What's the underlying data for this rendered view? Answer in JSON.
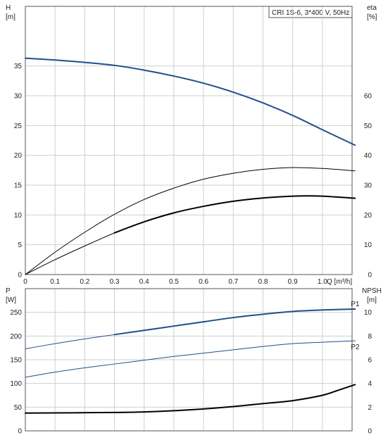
{
  "title_box": "CRI 1S-6, 3*400 V, 50Hz",
  "colors": {
    "blue": "#1f4e8c",
    "black": "#000000",
    "grid": "#cfcfcf"
  },
  "chart_data": [
    {
      "type": "line",
      "x_label": "Q [m³/h]",
      "x_ticks": [
        "0",
        "0.1",
        "0.2",
        "0.3",
        "0.4",
        "0.5",
        "0.6",
        "0.7",
        "0.8",
        "0.9",
        "1.0"
      ],
      "xlim": [
        0,
        1.1
      ],
      "y_left_label": [
        "H",
        "[m]"
      ],
      "y_left_ticks": [
        "0",
        "5",
        "10",
        "15",
        "20",
        "25",
        "30",
        "35"
      ],
      "y_left_lim": [
        0,
        45
      ],
      "y_right_label": [
        "eta",
        "[%]"
      ],
      "y_right_ticks": [
        "0",
        "10",
        "20",
        "30",
        "40",
        "50",
        "60"
      ],
      "y_right_lim": [
        0,
        90
      ],
      "grid": true,
      "series": [
        {
          "axis": "left",
          "color": "blue",
          "width": 2,
          "points": [
            [
              0,
              36.3
            ],
            [
              0.1,
              36.0
            ],
            [
              0.2,
              35.6
            ],
            [
              0.3,
              35.1
            ],
            [
              0.4,
              34.3
            ],
            [
              0.5,
              33.3
            ],
            [
              0.6,
              32.1
            ],
            [
              0.7,
              30.6
            ],
            [
              0.8,
              28.8
            ],
            [
              0.9,
              26.7
            ],
            [
              1.0,
              24.3
            ],
            [
              1.11,
              21.7
            ]
          ]
        },
        {
          "axis": "right",
          "color": "black",
          "width": 1,
          "points": [
            [
              0,
              0
            ],
            [
              0.1,
              7.5
            ],
            [
              0.2,
              14.2
            ],
            [
              0.3,
              20.2
            ],
            [
              0.4,
              25.2
            ],
            [
              0.5,
              29.0
            ],
            [
              0.6,
              32.0
            ],
            [
              0.7,
              34.0
            ],
            [
              0.8,
              35.3
            ],
            [
              0.9,
              35.9
            ],
            [
              1.0,
              35.6
            ],
            [
              1.11,
              34.8
            ]
          ]
        },
        {
          "axis": "right",
          "color": "black",
          "width": 1,
          "points": [
            [
              0,
              0
            ],
            [
              0.1,
              5.0
            ],
            [
              0.2,
              9.6
            ],
            [
              0.3,
              14.0
            ]
          ]
        },
        {
          "axis": "right",
          "color": "black",
          "width": 2,
          "points": [
            [
              0.3,
              14.0
            ],
            [
              0.4,
              17.7
            ],
            [
              0.5,
              20.7
            ],
            [
              0.6,
              22.9
            ],
            [
              0.7,
              24.6
            ],
            [
              0.8,
              25.7
            ],
            [
              0.9,
              26.3
            ],
            [
              0.95,
              26.4
            ],
            [
              1.0,
              26.3
            ],
            [
              1.11,
              25.6
            ]
          ]
        }
      ]
    },
    {
      "type": "line",
      "x_ticks": [],
      "xlim": [
        0,
        1.1
      ],
      "y_left_label": [
        "P",
        "[W]"
      ],
      "y_left_ticks": [
        "0",
        "50",
        "100",
        "150",
        "200",
        "250"
      ],
      "y_left_lim": [
        0,
        300
      ],
      "y_right_label": [
        "NPSH",
        "[m]"
      ],
      "y_right_ticks": [
        "0",
        "2",
        "4",
        "6",
        "8",
        "10"
      ],
      "y_right_lim": [
        0,
        12
      ],
      "grid": true,
      "series": [
        {
          "name": "P1",
          "axis": "left",
          "color": "blue",
          "width": 1,
          "points": [
            [
              0,
              173
            ],
            [
              0.1,
              184
            ],
            [
              0.2,
              194
            ],
            [
              0.3,
              203
            ]
          ]
        },
        {
          "name": "P1",
          "axis": "left",
          "color": "blue",
          "width": 2,
          "label_at_end": true,
          "points": [
            [
              0.3,
              203
            ],
            [
              0.4,
              212
            ],
            [
              0.5,
              221
            ],
            [
              0.6,
              230
            ],
            [
              0.7,
              239
            ],
            [
              0.8,
              246
            ],
            [
              0.9,
              252
            ],
            [
              1.0,
              255
            ],
            [
              1.11,
              257
            ]
          ]
        },
        {
          "name": "P2",
          "axis": "left",
          "color": "blue",
          "width": 1,
          "label_at_end": true,
          "points": [
            [
              0,
              113
            ],
            [
              0.1,
              124
            ],
            [
              0.2,
              133
            ],
            [
              0.3,
              141
            ],
            [
              0.4,
              149
            ],
            [
              0.5,
              157
            ],
            [
              0.6,
              164
            ],
            [
              0.7,
              171
            ],
            [
              0.8,
              178
            ],
            [
              0.9,
              184
            ],
            [
              1.0,
              187
            ],
            [
              1.11,
              190
            ]
          ]
        },
        {
          "axis": "right",
          "color": "black",
          "width": 2,
          "points": [
            [
              0,
              1.5
            ],
            [
              0.3,
              1.55
            ],
            [
              0.4,
              1.6
            ],
            [
              0.5,
              1.7
            ],
            [
              0.6,
              1.85
            ],
            [
              0.7,
              2.05
            ],
            [
              0.8,
              2.3
            ],
            [
              0.9,
              2.55
            ],
            [
              1.0,
              3.0
            ],
            [
              1.05,
              3.4
            ],
            [
              1.11,
              3.9
            ]
          ]
        }
      ]
    }
  ]
}
